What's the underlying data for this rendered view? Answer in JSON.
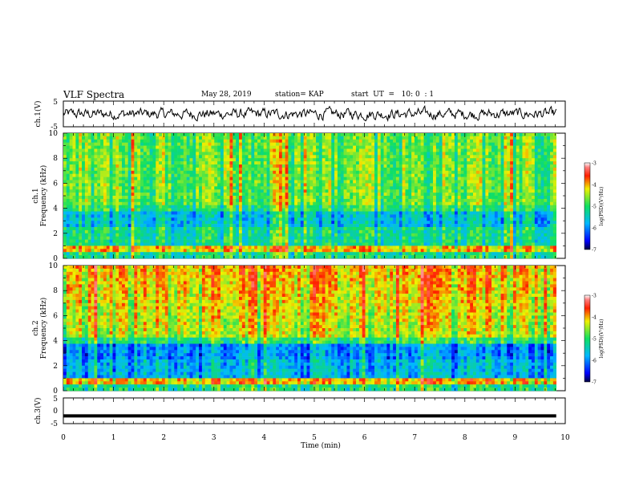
{
  "header": {
    "title": "VLF Spectra",
    "date": "May 28, 2019",
    "station": "station= KAP",
    "start": "start  UT  =   10: 0  : 1"
  },
  "chart_data": [
    {
      "type": "line",
      "panel": "ch1-waveform",
      "ylabel": "ch.1(V)",
      "ylim": [
        -5,
        5
      ],
      "yticks": [
        "5",
        "-5"
      ],
      "xlim": [
        0,
        10
      ],
      "color": "#000000",
      "note_trace": "noisy broadband waveform, roughly between -3 and +3 V"
    },
    {
      "type": "heatmap",
      "panel": "ch1-spectrogram",
      "ylabel": "ch.1\nFrequency (kHz)",
      "ylabel_line1": "ch.1",
      "ylabel_line2": "Frequency (kHz)",
      "ylim": [
        0,
        10
      ],
      "yticks": [
        "0",
        "2",
        "4",
        "6",
        "8",
        "10"
      ],
      "xlim": [
        0,
        10
      ],
      "colorbar": {
        "label": "log(PSD)(V²/Hz)",
        "range": [
          -7,
          -3
        ],
        "ticks": [
          "-3",
          "-4",
          "-5",
          "-6",
          "-7"
        ]
      }
    },
    {
      "type": "heatmap",
      "panel": "ch2-spectrogram",
      "ylabel": "ch.2\nFrequency (kHz)",
      "ylabel_line1": "ch.2",
      "ylabel_line2": "Frequency (kHz)",
      "ylim": [
        0,
        10
      ],
      "yticks": [
        "0",
        "2",
        "4",
        "6",
        "8",
        "10"
      ],
      "xlim": [
        0,
        10
      ],
      "colorbar": {
        "label": "log(PSD)(V²/Hz)",
        "range": [
          -7,
          -3
        ],
        "ticks": [
          "-3",
          "-4",
          "-5",
          "-6",
          "-7"
        ]
      }
    },
    {
      "type": "line",
      "panel": "ch3-waveform",
      "ylabel": "ch.3(V)",
      "ylim": [
        -5,
        5
      ],
      "yticks": [
        "5",
        "0",
        "-5"
      ],
      "xlim": [
        0,
        10
      ],
      "xlabel": "Time (min)",
      "xticks": [
        "0",
        "1",
        "2",
        "3",
        "4",
        "5",
        "6",
        "7",
        "8",
        "9",
        "10"
      ],
      "y": [
        -2,
        -2
      ],
      "x": [
        0,
        9.82
      ],
      "color": "#000000"
    }
  ]
}
